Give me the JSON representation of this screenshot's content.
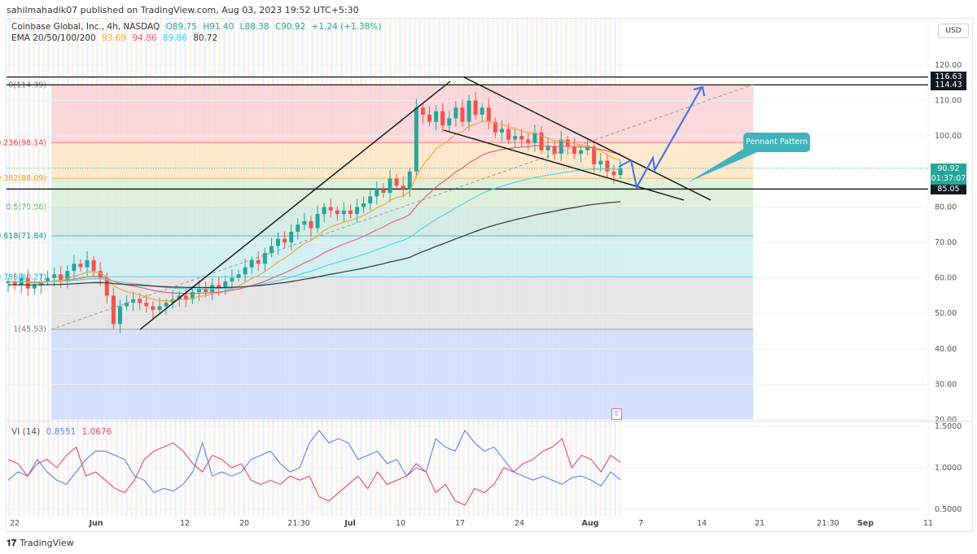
{
  "publisher": "sahilmahadik07 published on TradingView.com, Aug 03, 2023 19:52 UTC+5:30",
  "legend": {
    "symbol": "Coinbase Global, Inc., 4h, NASDAQ",
    "open": "O89.75",
    "high": "H91.40",
    "low": "L88.38",
    "close": "C90.92",
    "change": "+1.24 (+1.38%)",
    "ema_label": "EMA 20/50/100/200",
    "ema_values": [
      "93.69",
      "94.86",
      "89.86",
      "80.72"
    ]
  },
  "currency": "USD",
  "annotation": "Pennant Pattern",
  "earnings_marker": "E",
  "branding": "TradingView",
  "colors": {
    "up": "#26a69a",
    "down": "#ef5350",
    "ema20": "#f7a533",
    "ema50": "#e4607a",
    "ema100": "#4dd8e6",
    "ema200": "#333333",
    "vi_plus": "#5b7ff0",
    "vi_minus": "#e8456d",
    "arrow": "#3d6cf2",
    "callout": "#3fb3bb"
  },
  "chart_data": [
    {
      "type": "candlestick",
      "ylim": [
        20,
        122
      ],
      "y_ticks": [
        "120.00",
        "110.00",
        "100.00",
        "80.00",
        "70.00",
        "60.00",
        "50.00",
        "40.00",
        "30.00",
        "20.00"
      ],
      "x_ticks": [
        "22",
        "Jun",
        "12",
        "20",
        "21:30",
        "Jul",
        "10",
        "17",
        "24",
        "Aug",
        "7",
        "14",
        "21",
        "21:30",
        "Sep",
        "11"
      ],
      "closes": [
        59,
        58,
        60,
        57,
        58,
        59,
        60,
        61,
        59,
        62,
        64,
        63,
        65,
        62,
        60,
        55,
        47,
        52,
        53,
        54,
        53,
        52,
        51,
        52,
        53,
        54,
        55,
        54,
        56,
        57,
        56,
        58,
        57,
        59,
        60,
        61,
        63,
        65,
        64,
        67,
        69,
        71,
        70,
        73,
        75,
        76,
        74,
        78,
        80,
        79,
        78,
        79,
        78,
        80,
        81,
        83,
        85,
        84,
        88,
        86,
        85,
        90,
        108,
        106,
        104,
        107,
        103,
        105,
        108,
        104,
        110,
        106,
        108,
        104,
        101,
        102,
        99,
        100,
        99,
        98,
        101,
        96,
        97,
        95,
        99,
        97,
        95,
        96,
        97,
        92,
        93,
        90,
        89,
        90.92
      ],
      "last_price": "90.92",
      "countdown": "01:37:07",
      "horizontal_levels": [
        "116.63",
        "114.43",
        "85.05"
      ],
      "fibonacci": [
        {
          "label": "0(114.39)",
          "price": 114.39
        },
        {
          "label": "0.236(98.14)",
          "price": 98.14
        },
        {
          "label": "0.382(88.09)",
          "price": 88.09
        },
        {
          "label": "0.5(79.96)",
          "price": 79.96
        },
        {
          "label": "0.618(71.84)",
          "price": 71.84
        },
        {
          "label": "0.786(60.27)",
          "price": 60.27
        },
        {
          "label": "1(45.53)",
          "price": 45.53
        }
      ]
    },
    {
      "type": "line",
      "title": "VI (14)",
      "values_label": [
        "0.8551",
        "1.0676"
      ],
      "ylim": [
        0.45,
        1.55
      ],
      "y_ticks": [
        "1.5000",
        "1.0000",
        "0.5000"
      ],
      "series": [
        {
          "name": "VI+",
          "values": [
            0.85,
            0.95,
            0.9,
            1.1,
            0.95,
            0.85,
            0.8,
            0.95,
            1.1,
            1.2,
            1.2,
            1.15,
            1.1,
            0.9,
            0.85,
            0.7,
            0.75,
            0.72,
            0.8,
            0.95,
            1.3,
            0.9,
            0.95,
            0.9,
            0.95,
            1.1,
            1.15,
            1.2,
            1.05,
            0.95,
            1.0,
            1.3,
            1.45,
            1.3,
            1.35,
            1.3,
            1.1,
            1.15,
            1.2,
            1.05,
            1.1,
            0.9,
            1.0,
            0.95,
            1.35,
            1.25,
            1.2,
            1.45,
            1.3,
            1.2,
            1.25,
            1.1,
            0.95,
            0.9,
            0.85,
            0.9,
            0.85,
            0.8,
            0.88,
            0.9,
            0.85,
            0.78,
            0.95,
            0.8551
          ]
        },
        {
          "name": "VI-",
          "values": [
            1.1,
            1.05,
            0.9,
            1.05,
            1.1,
            1.0,
            1.15,
            1.25,
            0.9,
            0.95,
            0.85,
            0.75,
            0.7,
            0.85,
            1.1,
            1.2,
            1.25,
            1.3,
            1.2,
            1.05,
            0.95,
            1.15,
            1.1,
            1.0,
            1.05,
            0.85,
            0.8,
            0.85,
            0.8,
            0.9,
            0.85,
            0.9,
            0.65,
            0.6,
            0.7,
            0.8,
            0.9,
            0.75,
            0.95,
            0.8,
            0.85,
            0.9,
            1.05,
            0.95,
            0.7,
            0.8,
            0.6,
            0.55,
            0.75,
            0.7,
            0.8,
            1.0,
            0.95,
            1.05,
            1.1,
            1.2,
            1.25,
            1.35,
            1.0,
            1.15,
            1.1,
            0.95,
            1.15,
            1.0676
          ]
        }
      ]
    }
  ]
}
